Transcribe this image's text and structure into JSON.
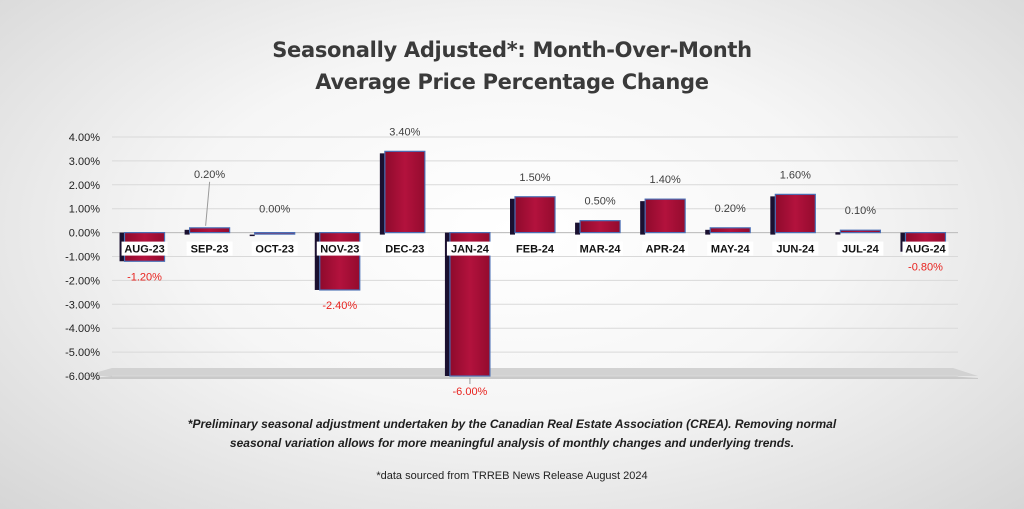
{
  "chart_data": {
    "type": "bar",
    "title_line1": "Seasonally Adjusted*:  Month-Over-Month",
    "title_line2": "Average Price Percentage Change",
    "categories": [
      "AUG-23",
      "SEP-23",
      "OCT-23",
      "NOV-23",
      "DEC-23",
      "JAN-24",
      "FEB-24",
      "MAR-24",
      "APR-24",
      "MAY-24",
      "JUN-24",
      "JUL-24",
      "AUG-24"
    ],
    "values": [
      -1.2,
      0.2,
      0.0,
      -2.4,
      3.4,
      -6.0,
      1.5,
      0.5,
      1.4,
      0.2,
      1.6,
      0.1,
      -0.8
    ],
    "value_labels": [
      "-1.20%",
      "0.20%",
      "0.00%",
      "-2.40%",
      "3.40%",
      "-6.00%",
      "1.50%",
      "0.50%",
      "1.40%",
      "0.20%",
      "1.60%",
      "0.10%",
      "-0.80%"
    ],
    "y_ticks": [
      "4.00%",
      "3.00%",
      "2.00%",
      "1.00%",
      "0.00%",
      "-1.00%",
      "-2.00%",
      "-3.00%",
      "-4.00%",
      "-5.00%",
      "-6.00%"
    ],
    "y_tick_values": [
      4,
      3,
      2,
      1,
      0,
      -1,
      -2,
      -3,
      -4,
      -5,
      -6
    ],
    "ylim": [
      -6,
      4
    ],
    "xlabel": "",
    "ylabel": "",
    "grid": true,
    "legend": "none",
    "colors": {
      "bar_fill": "#a50d34",
      "bar_side": "#1a1030",
      "bar_outline": "#4a6fb5",
      "negative_label": "#e8231f",
      "positive_label": "#3f3f3f",
      "floor": "#c9c9c9"
    }
  },
  "footnote_line1": "*Preliminary seasonal adjustment undertaken by the Canadian Real Estate Association (CREA).  Removing normal",
  "footnote_line2": "seasonal variation allows for more meaningful analysis of monthly changes and underlying trends.",
  "source_text": "*data sourced from TRREB News Release August 2024"
}
